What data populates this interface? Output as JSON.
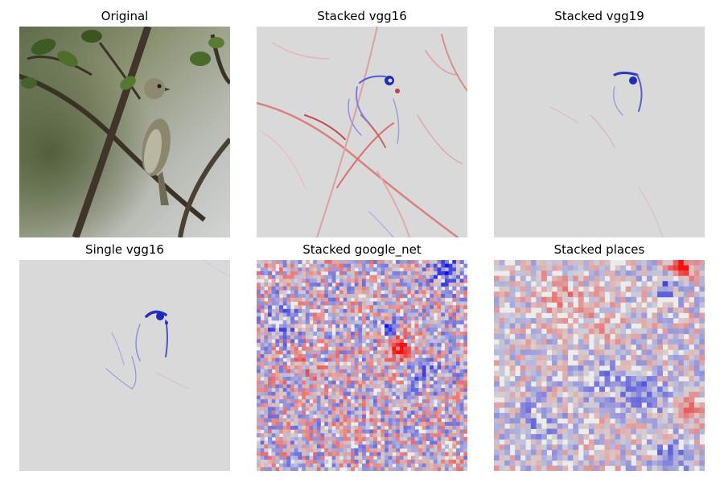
{
  "figure": {
    "panels": [
      {
        "title": "Original"
      },
      {
        "title": "Stacked vgg16"
      },
      {
        "title": "Stacked vgg19"
      },
      {
        "title": "Single vgg16"
      },
      {
        "title": "Stacked google_net"
      },
      {
        "title": "Stacked places"
      }
    ]
  },
  "colors": {
    "background_gray": "#d9d9d9",
    "positive_red": "#cc0000",
    "negative_blue": "#0000cc"
  }
}
